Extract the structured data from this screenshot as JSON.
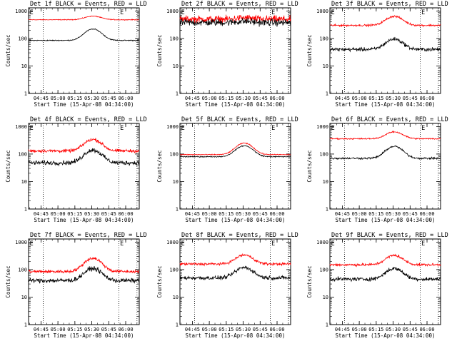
{
  "chart_data": {
    "type": "line",
    "x_tick_labels": [
      "04:45",
      "05:00",
      "05:15",
      "05:30",
      "05:45",
      "06:00"
    ],
    "x_start": "04:34:00",
    "x_end": "06:12:00",
    "xlabel": "Start Time (15-Apr-08 04:34:00)",
    "ylabel": "Counts/sec",
    "y_tick_labels": [
      "1",
      "10",
      "100",
      "1000"
    ],
    "yscale": "log",
    "ylim": [
      1,
      1300
    ],
    "marker_labels": [
      "E",
      "E"
    ],
    "marker_times": [
      "04:35",
      "05:55"
    ],
    "dotted_lines": [
      "04:47",
      "05:54",
      "06:10"
    ],
    "series_colors": {
      "events": "#000000",
      "lld": "#ff0000"
    },
    "panels": [
      {
        "title": "Det 1f BLACK = Events, RED = LLD",
        "events": {
          "base": 85,
          "peak": 220,
          "noise": 0.015
        },
        "lld": {
          "base": 480,
          "peak": 650,
          "noise": 0.012
        }
      },
      {
        "title": "Det 2f BLACK = Events, RED = LLD",
        "events": {
          "base": 380,
          "peak": 420,
          "noise": 0.11
        },
        "lld": {
          "base": 500,
          "peak": 560,
          "noise": 0.11
        }
      },
      {
        "title": "Det 3f BLACK = Events, RED = LLD",
        "events": {
          "base": 40,
          "peak": 95,
          "noise": 0.06
        },
        "lld": {
          "base": 300,
          "peak": 640,
          "noise": 0.03
        }
      },
      {
        "title": "Det 4f BLACK = Events, RED = LLD",
        "events": {
          "base": 48,
          "peak": 140,
          "noise": 0.07
        },
        "lld": {
          "base": 130,
          "peak": 340,
          "noise": 0.05
        }
      },
      {
        "title": "Det 5f BLACK = Events, RED = LLD",
        "events": {
          "base": 80,
          "peak": 200,
          "noise": 0.015
        },
        "lld": {
          "base": 95,
          "peak": 250,
          "noise": 0.015
        }
      },
      {
        "title": "Det 6f BLACK = Events, RED = LLD",
        "events": {
          "base": 70,
          "peak": 190,
          "noise": 0.03
        },
        "lld": {
          "base": 360,
          "peak": 640,
          "noise": 0.02
        }
      },
      {
        "title": "Det 7f BLACK = Events, RED = LLD",
        "events": {
          "base": 40,
          "peak": 110,
          "noise": 0.07
        },
        "lld": {
          "base": 85,
          "peak": 260,
          "noise": 0.05
        }
      },
      {
        "title": "Det 8f BLACK = Events, RED = LLD",
        "events": {
          "base": 50,
          "peak": 120,
          "noise": 0.06
        },
        "lld": {
          "base": 160,
          "peak": 340,
          "noise": 0.04
        }
      },
      {
        "title": "Det 9f BLACK = Events, RED = LLD",
        "events": {
          "base": 45,
          "peak": 110,
          "noise": 0.06
        },
        "lld": {
          "base": 150,
          "peak": 330,
          "noise": 0.04
        }
      }
    ]
  }
}
